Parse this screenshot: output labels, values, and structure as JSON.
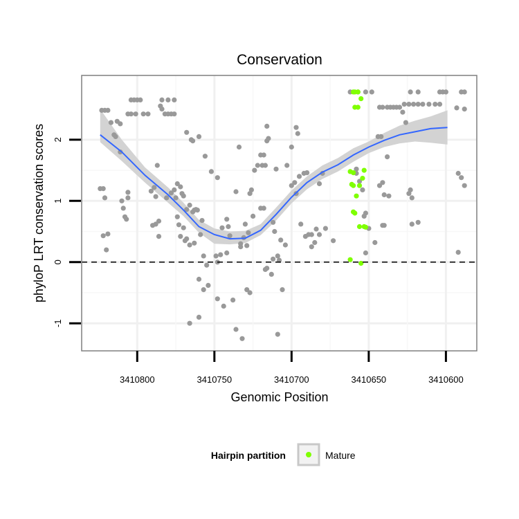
{
  "chart_data": {
    "type": "scatter",
    "title": "Conservation",
    "xlabel": "Genomic Position",
    "ylabel": "phyloP LRT conservation scores",
    "x_reversed": true,
    "xlim": [
      3410836,
      3410580
    ],
    "ylim": [
      -1.45,
      3.05
    ],
    "x_ticks": [
      3410800,
      3410750,
      3410700,
      3410650,
      3410600
    ],
    "x_tick_labels": [
      "3410800",
      "3410750",
      "3410700",
      "3410650",
      "3410600"
    ],
    "y_ticks": [
      -1,
      0,
      1,
      2
    ],
    "y_tick_labels": [
      "-1",
      "0",
      "1",
      "2"
    ],
    "reference_line": {
      "y": 0,
      "style": "dashed"
    },
    "grid": true,
    "colors": {
      "points": "#999999",
      "mature": "#7FFF00",
      "smooth": "#3366FF",
      "ribbon": "#D3D3D3",
      "panel_border": "#7F7F7F"
    },
    "legend": {
      "title": "Hairpin partition",
      "placement": "bottom",
      "entries": [
        {
          "label": "Mature",
          "color": "#7FFF00"
        }
      ]
    },
    "series": [
      {
        "role": "points",
        "points": [
          [
            3410823,
            2.48
          ],
          [
            3410821,
            2.48
          ],
          [
            3410819,
            2.48
          ],
          [
            3410824,
            1.2
          ],
          [
            3410822,
            1.2
          ],
          [
            3410821,
            1.05
          ],
          [
            3410822,
            0.43
          ],
          [
            3410819,
            0.46
          ],
          [
            3410820,
            0.2
          ],
          [
            3410817,
            2.28
          ],
          [
            3410815,
            2.08
          ],
          [
            3410814,
            2.05
          ],
          [
            3410813,
            2.3
          ],
          [
            3410811,
            2.26
          ],
          [
            3410811,
            1.8
          ],
          [
            3410810,
            1.0
          ],
          [
            3410809,
            0.88
          ],
          [
            3410808,
            0.74
          ],
          [
            3410807,
            0.7
          ],
          [
            3410806,
            1.05
          ],
          [
            3410806,
            1.14
          ],
          [
            3410804,
            2.65
          ],
          [
            3410802,
            2.65
          ],
          [
            3410800,
            2.65
          ],
          [
            3410798,
            2.65
          ],
          [
            3410806,
            2.42
          ],
          [
            3410804,
            2.42
          ],
          [
            3410801,
            2.42
          ],
          [
            3410796,
            2.42
          ],
          [
            3410793,
            2.42
          ],
          [
            3410791,
            1.16
          ],
          [
            3410789,
            1.22
          ],
          [
            3410788,
            1.07
          ],
          [
            3410790,
            0.6
          ],
          [
            3410788,
            0.62
          ],
          [
            3410786,
            0.67
          ],
          [
            3410786,
            0.42
          ],
          [
            3410787,
            1.58
          ],
          [
            3410785,
            2.55
          ],
          [
            3410784,
            2.5
          ],
          [
            3410782,
            2.42
          ],
          [
            3410780,
            2.42
          ],
          [
            3410778,
            2.42
          ],
          [
            3410776,
            2.42
          ],
          [
            3410784,
            2.65
          ],
          [
            3410780,
            2.65
          ],
          [
            3410776,
            2.65
          ],
          [
            3410781,
            1.05
          ],
          [
            3410778,
            1.13
          ],
          [
            3410776,
            1.18
          ],
          [
            3410775,
            1.05
          ],
          [
            3410774,
            1.28
          ],
          [
            3410772,
            1.23
          ],
          [
            3410771,
            1.12
          ],
          [
            3410770,
            1.08
          ],
          [
            3410774,
            0.74
          ],
          [
            3410773,
            0.61
          ],
          [
            3410772,
            0.42
          ],
          [
            3410770,
            0.56
          ],
          [
            3410769,
            0.35
          ],
          [
            3410768,
            0.38
          ],
          [
            3410768,
            2.12
          ],
          [
            3410765,
            2.0
          ],
          [
            3410764,
            1.98
          ],
          [
            3410760,
            2.05
          ],
          [
            3410768,
            0.86
          ],
          [
            3410766,
            0.93
          ],
          [
            3410764,
            0.82
          ],
          [
            3410763,
            0.85
          ],
          [
            3410762,
            0.86
          ],
          [
            3410766,
            0.28
          ],
          [
            3410763,
            0.31
          ],
          [
            3410758,
            0.68
          ],
          [
            3410757,
            0.1
          ],
          [
            3410755,
            -0.05
          ],
          [
            3410759,
            0.45
          ],
          [
            3410761,
            0.85
          ],
          [
            3410760,
            -0.28
          ],
          [
            3410757,
            -0.45
          ],
          [
            3410754,
            -0.38
          ],
          [
            3410766,
            -1.0
          ],
          [
            3410760,
            -0.9
          ],
          [
            3410756,
            1.73
          ],
          [
            3410752,
            1.48
          ],
          [
            3410748,
            1.38
          ],
          [
            3410749,
            0.1
          ],
          [
            3410748,
            0.0
          ],
          [
            3410746,
            0.12
          ],
          [
            3410742,
            0.15
          ],
          [
            3410745,
            0.56
          ],
          [
            3410742,
            0.7
          ],
          [
            3410741,
            0.58
          ],
          [
            3410740,
            0.43
          ],
          [
            3410748,
            -0.6
          ],
          [
            3410744,
            -0.72
          ],
          [
            3410738,
            -0.62
          ],
          [
            3410736,
            1.15
          ],
          [
            3410734,
            1.88
          ],
          [
            3410733,
            0.25
          ],
          [
            3410733,
            0.3
          ],
          [
            3410731,
            0.4
          ],
          [
            3410732,
            -1.25
          ],
          [
            3410736,
            -1.1
          ],
          [
            3410730,
            0.62
          ],
          [
            3410729,
            0.27
          ],
          [
            3410728,
            0.48
          ],
          [
            3410729,
            -0.45
          ],
          [
            3410727,
            -0.5
          ],
          [
            3410727,
            1.12
          ],
          [
            3410726,
            1.18
          ],
          [
            3410725,
            0.75
          ],
          [
            3410724,
            1.5
          ],
          [
            3410720,
            1.75
          ],
          [
            3410718,
            1.75
          ],
          [
            3410722,
            1.58
          ],
          [
            3410719,
            1.58
          ],
          [
            3410717,
            1.58
          ],
          [
            3410720,
            0.88
          ],
          [
            3410718,
            0.88
          ],
          [
            3410716,
            1.98
          ],
          [
            3410716,
            2.22
          ],
          [
            3410715,
            2.02
          ],
          [
            3410710,
            1.52
          ],
          [
            3410712,
            0.65
          ],
          [
            3410711,
            0.5
          ],
          [
            3410712,
            0.05
          ],
          [
            3410716,
            -0.1
          ],
          [
            3410713,
            -0.2
          ],
          [
            3410708,
            0.03
          ],
          [
            3410709,
            0.1
          ],
          [
            3410707,
            0.36
          ],
          [
            3410709,
            -1.18
          ],
          [
            3410717,
            -0.12
          ],
          [
            3410706,
            -0.45
          ],
          [
            3410704,
            0.28
          ],
          [
            3410703,
            1.58
          ],
          [
            3410700,
            1.88
          ],
          [
            3410697,
            2.2
          ],
          [
            3410696,
            2.1
          ],
          [
            3410700,
            1.25
          ],
          [
            3410698,
            1.3
          ],
          [
            3410697,
            1.12
          ],
          [
            3410695,
            1.4
          ],
          [
            3410692,
            1.45
          ],
          [
            3410690,
            1.46
          ],
          [
            3410694,
            0.62
          ],
          [
            3410691,
            0.42
          ],
          [
            3410689,
            0.45
          ],
          [
            3410687,
            0.45
          ],
          [
            3410687,
            0.25
          ],
          [
            3410685,
            0.32
          ],
          [
            3410684,
            0.54
          ],
          [
            3410682,
            0.45
          ],
          [
            3410682,
            1.28
          ],
          [
            3410680,
            1.45
          ],
          [
            3410678,
            0.55
          ],
          [
            3410673,
            0.35
          ],
          [
            3410658,
            1.52
          ],
          [
            3410658,
            1.45
          ],
          [
            3410656,
            1.32
          ],
          [
            3410654,
            1.18
          ],
          [
            3410652,
            0.8
          ],
          [
            3410653,
            0.75
          ],
          [
            3410650,
            0.55
          ],
          [
            3410652,
            0.15
          ],
          [
            3410646,
            0.32
          ],
          [
            3410644,
            2.05
          ],
          [
            3410642,
            2.05
          ],
          [
            3410643,
            1.25
          ],
          [
            3410641,
            1.3
          ],
          [
            3410640,
            1.1
          ],
          [
            3410641,
            0.6
          ],
          [
            3410640,
            0.6
          ],
          [
            3410638,
            1.72
          ],
          [
            3410637,
            1.08
          ],
          [
            3410628,
            2.45
          ],
          [
            3410627,
            2.58
          ],
          [
            3410624,
            2.58
          ],
          [
            3410621,
            2.58
          ],
          [
            3410618,
            2.58
          ],
          [
            3410615,
            2.58
          ],
          [
            3410611,
            2.58
          ],
          [
            3410607,
            2.58
          ],
          [
            3410604,
            2.58
          ],
          [
            3410626,
            2.28
          ],
          [
            3410624,
            1.12
          ],
          [
            3410623,
            1.18
          ],
          [
            3410622,
            1.05
          ],
          [
            3410622,
            0.62
          ],
          [
            3410618,
            0.65
          ],
          [
            3410623,
            2.78
          ],
          [
            3410618,
            2.78
          ],
          [
            3410604,
            2.78
          ],
          [
            3410602,
            2.78
          ],
          [
            3410600,
            2.78
          ],
          [
            3410590,
            2.78
          ],
          [
            3410588,
            2.78
          ],
          [
            3410593,
            2.52
          ],
          [
            3410588,
            2.5
          ],
          [
            3410592,
            1.45
          ],
          [
            3410590,
            1.38
          ],
          [
            3410588,
            1.25
          ],
          [
            3410592,
            0.16
          ],
          [
            3410662,
            2.78
          ],
          [
            3410657,
            2.78
          ],
          [
            3410652,
            2.78
          ],
          [
            3410648,
            2.78
          ],
          [
            3410643,
            2.53
          ],
          [
            3410641,
            2.53
          ],
          [
            3410638,
            2.53
          ],
          [
            3410636,
            2.53
          ],
          [
            3410634,
            2.53
          ],
          [
            3410632,
            2.53
          ],
          [
            3410630,
            2.53
          ]
        ]
      },
      {
        "name": "Mature",
        "role": "mature",
        "points": [
          [
            3410659,
            2.78
          ],
          [
            3410660,
            2.78
          ],
          [
            3410657,
            2.78
          ],
          [
            3410655,
            2.67
          ],
          [
            3410659,
            2.53
          ],
          [
            3410657,
            2.53
          ],
          [
            3410662,
            1.48
          ],
          [
            3410660,
            1.46
          ],
          [
            3410661,
            1.27
          ],
          [
            3410660,
            1.25
          ],
          [
            3410656,
            1.25
          ],
          [
            3410658,
            1.08
          ],
          [
            3410654,
            1.37
          ],
          [
            3410653,
            1.5
          ],
          [
            3410660,
            0.82
          ],
          [
            3410659,
            0.8
          ],
          [
            3410656,
            0.58
          ],
          [
            3410653,
            0.58
          ],
          [
            3410652,
            0.57
          ],
          [
            3410662,
            0.04
          ],
          [
            3410655,
            -0.02
          ]
        ]
      },
      {
        "role": "smooth",
        "points": [
          [
            3410824,
            2.08
          ],
          [
            3410810,
            1.8
          ],
          [
            3410795,
            1.42
          ],
          [
            3410780,
            1.1
          ],
          [
            3410770,
            0.85
          ],
          [
            3410760,
            0.58
          ],
          [
            3410750,
            0.45
          ],
          [
            3410740,
            0.38
          ],
          [
            3410730,
            0.39
          ],
          [
            3410720,
            0.52
          ],
          [
            3410710,
            0.78
          ],
          [
            3410700,
            1.06
          ],
          [
            3410690,
            1.3
          ],
          [
            3410680,
            1.47
          ],
          [
            3410670,
            1.59
          ],
          [
            3410660,
            1.75
          ],
          [
            3410650,
            1.88
          ],
          [
            3410640,
            1.99
          ],
          [
            3410630,
            2.08
          ],
          [
            3410620,
            2.13
          ],
          [
            3410610,
            2.18
          ],
          [
            3410599,
            2.2
          ]
        ]
      },
      {
        "role": "ribbon",
        "points": [
          [
            3410824,
            1.96,
            2.5
          ],
          [
            3410810,
            1.65,
            2.0
          ],
          [
            3410795,
            1.3,
            1.55
          ],
          [
            3410780,
            0.97,
            1.22
          ],
          [
            3410770,
            0.75,
            0.97
          ],
          [
            3410760,
            0.48,
            0.69
          ],
          [
            3410750,
            0.3,
            0.55
          ],
          [
            3410740,
            0.29,
            0.5
          ],
          [
            3410730,
            0.31,
            0.51
          ],
          [
            3410720,
            0.44,
            0.62
          ],
          [
            3410710,
            0.68,
            0.89
          ],
          [
            3410700,
            0.96,
            1.17
          ],
          [
            3410690,
            1.19,
            1.4
          ],
          [
            3410680,
            1.36,
            1.58
          ],
          [
            3410670,
            1.48,
            1.7
          ],
          [
            3410660,
            1.64,
            1.86
          ],
          [
            3410650,
            1.78,
            1.97
          ],
          [
            3410640,
            1.88,
            2.11
          ],
          [
            3410630,
            1.94,
            2.23
          ],
          [
            3410620,
            1.97,
            2.31
          ],
          [
            3410610,
            1.95,
            2.38
          ],
          [
            3410599,
            1.92,
            2.48
          ]
        ]
      }
    ]
  }
}
